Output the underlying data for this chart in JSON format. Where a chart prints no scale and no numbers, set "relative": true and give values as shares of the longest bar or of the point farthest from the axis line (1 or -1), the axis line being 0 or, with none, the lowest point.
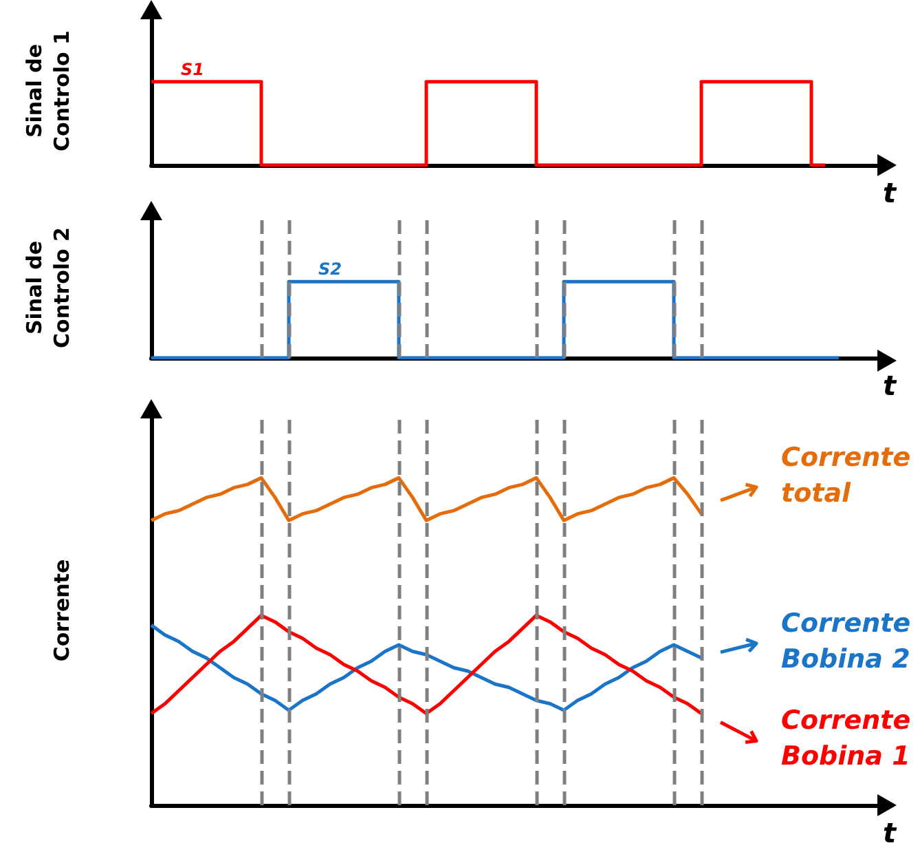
{
  "chart_data": [
    {
      "type": "step",
      "relative": true,
      "ylabel": "Sinal de\nControlo 1",
      "xlabel": "t",
      "categories": [
        null,
        null,
        null,
        null,
        null,
        null,
        null,
        null,
        null,
        null,
        null,
        null,
        null,
        null,
        null,
        null,
        null,
        null,
        null,
        null,
        null,
        null,
        null,
        null,
        null,
        null,
        null,
        null,
        null,
        null,
        null,
        null,
        null,
        null,
        null,
        null,
        null,
        null,
        null,
        null,
        null,
        null,
        null,
        null,
        null,
        null,
        null,
        null,
        null,
        null,
        null,
        null,
        null,
        null
      ],
      "series": [
        {
          "name": "S1",
          "color": "#ff0000",
          "values": [
            1,
            1,
            1,
            1,
            1,
            1,
            1,
            1,
            1,
            0,
            0,
            0,
            0,
            0,
            0,
            0,
            0,
            0,
            0,
            0,
            0,
            1,
            1,
            1,
            1,
            1,
            1,
            1,
            1,
            0,
            0,
            0,
            0,
            0,
            0,
            0,
            0,
            0,
            0,
            0,
            0,
            1,
            1,
            1,
            1,
            1,
            1,
            1,
            1,
            0,
            null,
            null,
            null,
            null
          ]
        }
      ]
    },
    {
      "type": "step",
      "relative": true,
      "ylabel": "Sinal de\nControlo 2",
      "xlabel": "t",
      "grid": "x",
      "categories": [
        null,
        null,
        null,
        null,
        null,
        null,
        null,
        null,
        null,
        null,
        null,
        null,
        null,
        null,
        null,
        null,
        null,
        null,
        null,
        null,
        null,
        null,
        null,
        null,
        null,
        null,
        null,
        null,
        null,
        null,
        null,
        null,
        null,
        null,
        null,
        null,
        null,
        null,
        null,
        null,
        null,
        null,
        null,
        null,
        null,
        null,
        null,
        null,
        null,
        null,
        null,
        null,
        null,
        null
      ],
      "series": [
        {
          "name": "S2",
          "color": "#1a75c8",
          "values": [
            0,
            0,
            0,
            0,
            0,
            0,
            0,
            0,
            0,
            0,
            0,
            1,
            1,
            1,
            1,
            1,
            1,
            1,
            1,
            0,
            0,
            0,
            0,
            0,
            0,
            0,
            0,
            0,
            0,
            0,
            0,
            1,
            1,
            1,
            1,
            1,
            1,
            1,
            1,
            0,
            0,
            0,
            0,
            0,
            0,
            0,
            0,
            0,
            0,
            0,
            0,
            null,
            null,
            null
          ]
        }
      ]
    },
    {
      "type": "line",
      "relative": true,
      "ylabel": "Corrente",
      "xlabel": "t",
      "legend": "right",
      "grid": "x",
      "categories": [
        null,
        null,
        null,
        null,
        null,
        null,
        null,
        null,
        null,
        null,
        null,
        null,
        null,
        null,
        null,
        null,
        null,
        null,
        null,
        null,
        null,
        null,
        null,
        null,
        null,
        null,
        null,
        null,
        null,
        null,
        null,
        null,
        null,
        null,
        null,
        null,
        null,
        null,
        null,
        null,
        null,
        null,
        null,
        null,
        null,
        null,
        null,
        null,
        null,
        null,
        null,
        null,
        null,
        null
      ],
      "series": [
        {
          "name": "Corrente total",
          "color": "#e46c0a",
          "values": [
            0.87,
            0.89,
            0.9,
            0.92,
            0.94,
            0.95,
            0.97,
            0.98,
            1,
            0.94,
            0.87,
            0.89,
            0.9,
            0.92,
            0.94,
            0.95,
            0.97,
            0.98,
            1,
            0.94,
            0.87,
            0.89,
            0.9,
            0.92,
            0.94,
            0.95,
            0.97,
            0.98,
            1,
            0.94,
            0.87,
            0.89,
            0.9,
            0.92,
            0.94,
            0.95,
            0.97,
            0.98,
            1,
            0.95,
            0.89,
            null,
            null,
            null,
            null,
            null,
            null,
            null,
            null,
            null,
            null,
            null,
            null,
            null
          ]
        },
        {
          "name": "Corrente Bobina 2",
          "color": "#1a75c8",
          "values": [
            0.55,
            0.52,
            0.5,
            0.47,
            0.45,
            0.42,
            0.39,
            0.37,
            0.34,
            0.32,
            0.29,
            0.32,
            0.34,
            0.37,
            0.39,
            0.42,
            0.44,
            0.47,
            0.49,
            0.47,
            0.46,
            0.44,
            0.42,
            0.41,
            0.39,
            0.37,
            0.36,
            0.34,
            0.32,
            0.31,
            0.29,
            0.32,
            0.34,
            0.37,
            0.39,
            0.42,
            0.44,
            0.47,
            0.49,
            0.47,
            0.45,
            null,
            null,
            null,
            null,
            null,
            null,
            null,
            null,
            null,
            null,
            null,
            null,
            null
          ]
        },
        {
          "name": "Corrente Bobina 1",
          "color": "#ff0000",
          "values": [
            0.28,
            0.31,
            0.35,
            0.39,
            0.43,
            0.47,
            0.5,
            0.54,
            0.58,
            0.56,
            0.53,
            0.51,
            0.48,
            0.46,
            0.43,
            0.41,
            0.38,
            0.36,
            0.33,
            0.31,
            0.28,
            0.31,
            0.35,
            0.39,
            0.43,
            0.47,
            0.5,
            0.54,
            0.58,
            0.56,
            0.53,
            0.51,
            0.48,
            0.46,
            0.43,
            0.41,
            0.38,
            0.36,
            0.33,
            0.31,
            0.28,
            null,
            null,
            null,
            null,
            null,
            null,
            null,
            null,
            null,
            null,
            null,
            null,
            null
          ]
        }
      ]
    }
  ]
}
